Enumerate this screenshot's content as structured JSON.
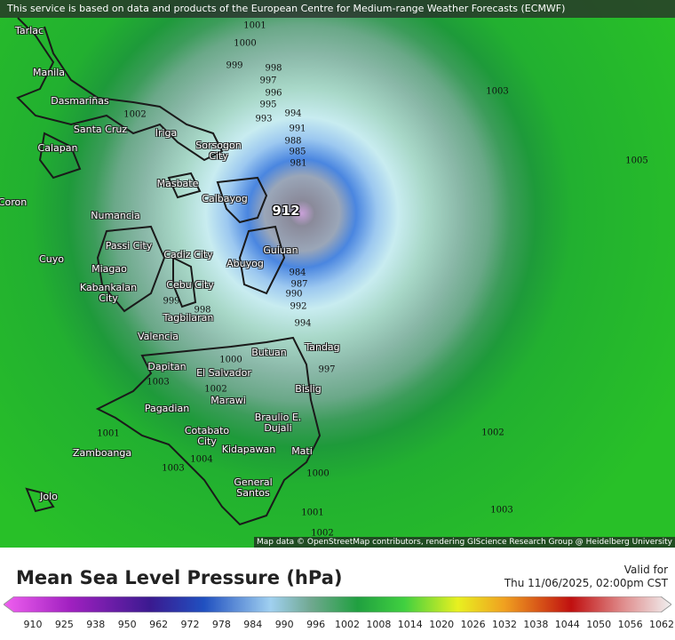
{
  "banner": "This service is based on data and products of the European Centre for Medium-range Weather Forecasts (ECMWF)",
  "places": [
    "Tarlac",
    "Manila",
    "Dasmariñas",
    "Santa Cruz",
    "Calapan",
    "Iriga",
    "Sorsogon City",
    "Masbate",
    "Calbayog",
    "Coron",
    "Numancia",
    "Passi City",
    "Cuyo",
    "Cadiz City",
    "Abuyog",
    "Guiuan",
    "Miagao",
    "Kabankalan City",
    "Cebu City",
    "Tagbilaran",
    "Valencia",
    "Butuan",
    "Tandag",
    "Dapitan",
    "El Salvador",
    "Bislig",
    "Marawi",
    "Pagadian",
    "Braulio E. Dujali",
    "Cotabato City",
    "Zamboanga",
    "Kidapawan",
    "Mati",
    "General Santos",
    "Jolo"
  ],
  "isobars": [
    "1001",
    "1000",
    "999",
    "998",
    "997",
    "996",
    "995",
    "994",
    "993",
    "991",
    "988",
    "985",
    "981",
    "984",
    "987",
    "990",
    "992",
    "994",
    "1003",
    "1005",
    "1002",
    "1000",
    "997",
    "1002",
    "1003",
    "1001",
    "1002",
    "1000",
    "1003",
    "1004",
    "1003",
    "999",
    "998",
    "1002",
    "1001"
  ],
  "center": "912",
  "attribution": "Map data © OpenStreetMap contributors, rendering GIScience Research Group @ Heidelberg University",
  "legend": {
    "title": "Mean Sea Level Pressure (hPa)",
    "valid_label": "Valid for",
    "valid_time": "Thu 11/06/2025, 02:00pm CST",
    "scale": [
      910,
      925,
      938,
      950,
      962,
      972,
      978,
      984,
      990,
      996,
      1002,
      1008,
      1014,
      1020,
      1026,
      1032,
      1038,
      1044,
      1050,
      1056,
      1062
    ]
  }
}
